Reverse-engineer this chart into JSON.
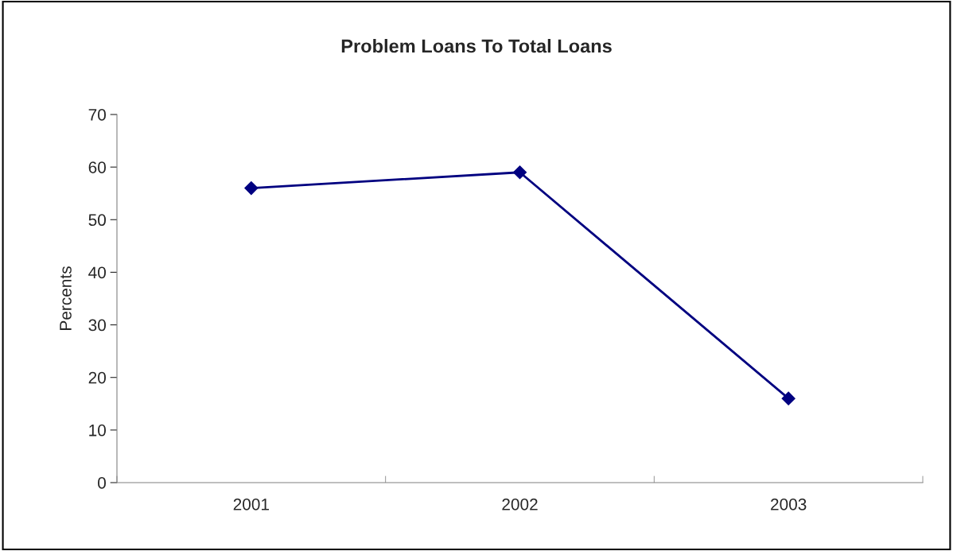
{
  "chart_data": {
    "type": "line",
    "title": "Problem Loans To Total Loans",
    "ylabel": "Percents",
    "categories": [
      "2001",
      "2002",
      "2003"
    ],
    "series": [
      {
        "color": "#000080",
        "values": [
          56,
          59,
          16
        ]
      }
    ],
    "ylim": [
      0,
      70
    ],
    "yticks": [
      0,
      10,
      20,
      30,
      40,
      50,
      60,
      70
    ],
    "marker": "diamond",
    "line_style": "solid"
  }
}
